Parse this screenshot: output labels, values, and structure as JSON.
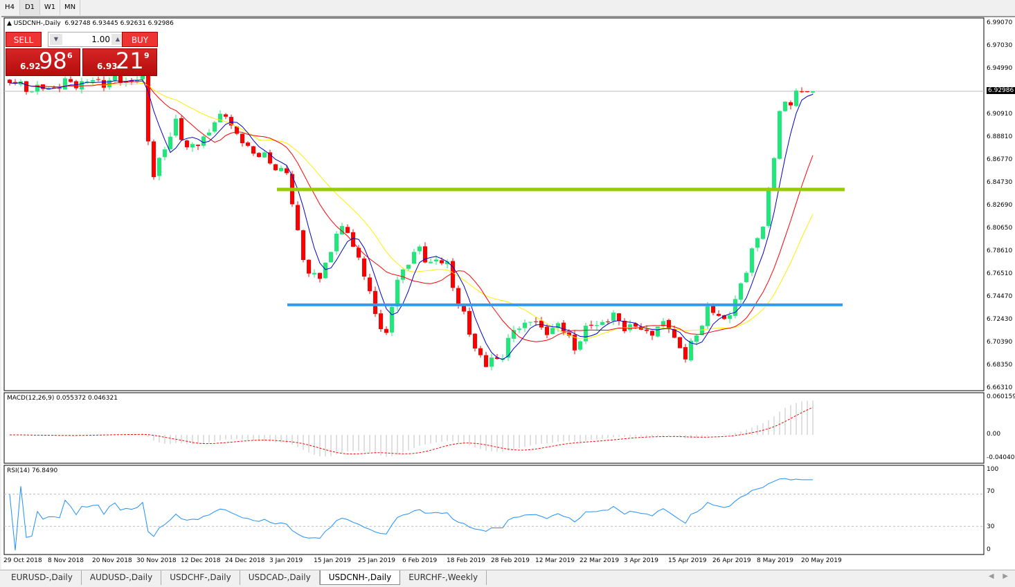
{
  "timeframes": [
    "H4",
    "D1",
    "W1",
    "MN"
  ],
  "active_timeframe": "D1",
  "chart": {
    "title": "USDCNH-,Daily",
    "ohlc": "6.92748 6.93445 6.92631 6.92986"
  },
  "trade_panel": {
    "sell_label": "SELL",
    "buy_label": "BUY",
    "lot": "1.00",
    "sell_small": "6.92",
    "sell_big": "98",
    "sell_sup": "6",
    "buy_small": "6.93",
    "buy_big": "21",
    "buy_sup": "9"
  },
  "price_axis": [
    "6.99070",
    "6.97030",
    "6.94990",
    "6.90910",
    "6.88810",
    "6.86770",
    "6.84730",
    "6.82690",
    "6.80650",
    "6.78610",
    "6.76510",
    "6.74470",
    "6.72430",
    "6.70390",
    "6.68350",
    "6.66310"
  ],
  "current_price": "6.92986",
  "macd": {
    "label": "MACD(12,26,9) 0.055372 0.046321",
    "axis": [
      "0.060159",
      "0.00",
      "-0.040407"
    ]
  },
  "rsi": {
    "label": "RSI(14) 76.8490",
    "axis": [
      "100",
      "70",
      "30",
      "0"
    ],
    "levels": [
      70,
      30
    ]
  },
  "date_axis": [
    "29 Oct 2018",
    "8 Nov 2018",
    "20 Nov 2018",
    "30 Nov 2018",
    "12 Dec 2018",
    "24 Dec 2018",
    "3 Jan 2019",
    "15 Jan 2019",
    "25 Jan 2019",
    "6 Feb 2019",
    "18 Feb 2019",
    "28 Feb 2019",
    "12 Mar 2019",
    "22 Mar 2019",
    "3 Apr 2019",
    "15 Apr 2019",
    "26 Apr 2019",
    "8 May 2019",
    "20 May 2019"
  ],
  "chart_data": {
    "type": "candlestick",
    "price_range": [
      6.6631,
      6.9907
    ],
    "close_path_bar_price": [
      [
        0,
        6.9373
      ],
      [
        5,
        6.9311
      ],
      [
        11,
        6.9373
      ],
      [
        24,
        6.9404
      ],
      [
        25,
        6.8877
      ],
      [
        26,
        6.8567
      ],
      [
        29,
        6.8877
      ],
      [
        30,
        6.9063
      ],
      [
        32,
        6.8753
      ],
      [
        36,
        6.8939
      ],
      [
        39,
        6.9125
      ],
      [
        41,
        6.8877
      ],
      [
        46,
        6.8691
      ],
      [
        50,
        6.8567
      ],
      [
        51,
        6.8256
      ],
      [
        54,
        6.7636
      ],
      [
        56,
        6.7636
      ],
      [
        59,
        6.8008
      ],
      [
        61,
        6.807
      ],
      [
        64,
        6.7636
      ],
      [
        66,
        6.7326
      ],
      [
        68,
        6.7077
      ],
      [
        70,
        6.7636
      ],
      [
        74,
        6.7884
      ],
      [
        76,
        6.776
      ],
      [
        79,
        6.776
      ],
      [
        81,
        6.7388
      ],
      [
        84,
        6.7015
      ],
      [
        86,
        6.6829
      ],
      [
        89,
        6.6953
      ],
      [
        91,
        6.714
      ],
      [
        94,
        6.7264
      ],
      [
        96,
        6.714
      ],
      [
        99,
        6.7202
      ],
      [
        102,
        6.7015
      ],
      [
        105,
        6.7202
      ],
      [
        109,
        6.7264
      ],
      [
        111,
        6.7202
      ],
      [
        115,
        6.714
      ],
      [
        119,
        6.7202
      ],
      [
        122,
        6.6891
      ],
      [
        124,
        6.714
      ],
      [
        126,
        6.7326
      ],
      [
        129,
        6.7264
      ],
      [
        131,
        6.7388
      ],
      [
        134,
        6.7884
      ],
      [
        136,
        6.807
      ],
      [
        137,
        6.8381
      ],
      [
        139,
        6.9125
      ],
      [
        141,
        6.9187
      ],
      [
        142,
        6.9311
      ],
      [
        145,
        6.92986
      ]
    ],
    "moving_averages": [
      {
        "period": 5,
        "color": "#0000cc"
      },
      {
        "period": 13,
        "color": "#ff0000"
      },
      {
        "period": 21,
        "color": "#ffee00"
      }
    ],
    "horizontal_lines": [
      {
        "price": 6.8418,
        "color": "#99cc00"
      },
      {
        "price": 6.7382,
        "color": "#3399ee"
      }
    ],
    "bull_color": "#1ee87a",
    "bear_color": "#ff0000"
  },
  "tabs": [
    "EURUSD-,Daily",
    "AUDUSD-,Daily",
    "USDCHF-,Daily",
    "USDCAD-,Daily",
    "USDCNH-,Daily",
    "EURCHF-,Weekly"
  ],
  "active_tab": "USDCNH-,Daily"
}
